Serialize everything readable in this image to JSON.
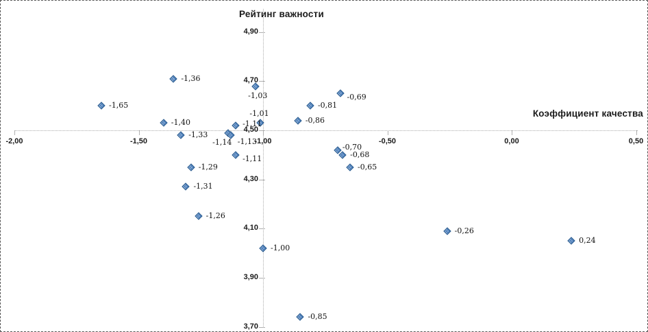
{
  "colors": {
    "marker_fill": "#4a7dba",
    "marker_border": "#2d5d8e",
    "axis_line": "#ababab",
    "text": "#1a1a1a",
    "border": "#555555"
  },
  "chart_data": {
    "type": "scatter",
    "title": "",
    "xlabel": "Коэффициент качества",
    "ylabel": "Рейтинг важности",
    "xlim": [
      -2.0,
      0.5
    ],
    "ylim": [
      3.7,
      4.9
    ],
    "axes_cross_at": {
      "x": -1.0,
      "y": 4.5
    },
    "grid": false,
    "legend": "none",
    "x_ticks": [
      {
        "value": -2.0,
        "label": "-2,00"
      },
      {
        "value": -1.5,
        "label": "-1,50"
      },
      {
        "value": -1.0,
        "label": "-1,00"
      },
      {
        "value": -0.5,
        "label": "-0,50"
      },
      {
        "value": 0.0,
        "label": "0,00"
      },
      {
        "value": 0.5,
        "label": "0,50"
      }
    ],
    "y_ticks": [
      {
        "value": 4.9,
        "label": "4,90"
      },
      {
        "value": 4.7,
        "label": "4,70"
      },
      {
        "value": 4.5,
        "label": "4,50"
      },
      {
        "value": 4.3,
        "label": "4,30"
      },
      {
        "value": 4.1,
        "label": "4,10"
      },
      {
        "value": 3.9,
        "label": "3,90"
      },
      {
        "value": 3.7,
        "label": "3,70"
      }
    ],
    "points": [
      {
        "x": -1.65,
        "y": 4.6,
        "label": "-1,65",
        "label_pos": "right"
      },
      {
        "x": -1.36,
        "y": 4.71,
        "label": "-1,36",
        "label_pos": "right"
      },
      {
        "x": -1.4,
        "y": 4.53,
        "label": "-1,40",
        "label_pos": "right"
      },
      {
        "x": -1.33,
        "y": 4.48,
        "label": "-1,33",
        "label_pos": "right"
      },
      {
        "x": -1.03,
        "y": 4.68,
        "label": "-1,03",
        "label_pos": "below"
      },
      {
        "x": -0.69,
        "y": 4.65,
        "label": "-0,69",
        "label_pos": "right-down"
      },
      {
        "x": -0.81,
        "y": 4.6,
        "label": "-0,81",
        "label_pos": "right"
      },
      {
        "x": -0.86,
        "y": 4.54,
        "label": "-0,86",
        "label_pos": "right"
      },
      {
        "x": -1.01,
        "y": 4.53,
        "label": "-1,01",
        "label_pos": "above"
      },
      {
        "x": -1.11,
        "y": 4.52,
        "label": "-1,11",
        "label_pos": "right-up"
      },
      {
        "x": -1.14,
        "y": 4.49,
        "label": "-1,14",
        "label_pos": "below-left"
      },
      {
        "x": -1.13,
        "y": 4.48,
        "label": "-1,13",
        "label_pos": "below-right"
      },
      {
        "x": -1.11,
        "y": 4.4,
        "label": "-1,11",
        "label_pos": "right-down"
      },
      {
        "x": -0.7,
        "y": 4.42,
        "label": "-0,70",
        "label_pos": "above-right"
      },
      {
        "x": -0.68,
        "y": 4.4,
        "label": "-0,68",
        "label_pos": "right"
      },
      {
        "x": -0.65,
        "y": 4.35,
        "label": "-0,65",
        "label_pos": "right"
      },
      {
        "x": -1.29,
        "y": 4.35,
        "label": "-1,29",
        "label_pos": "right"
      },
      {
        "x": -1.31,
        "y": 4.27,
        "label": "-1,31",
        "label_pos": "right"
      },
      {
        "x": -1.26,
        "y": 4.15,
        "label": "-1,26",
        "label_pos": "right"
      },
      {
        "x": -1.0,
        "y": 4.02,
        "label": "-1,00",
        "label_pos": "right"
      },
      {
        "x": -0.26,
        "y": 4.09,
        "label": "-0,26",
        "label_pos": "right"
      },
      {
        "x": 0.24,
        "y": 4.05,
        "label": "0,24",
        "label_pos": "right"
      },
      {
        "x": -0.85,
        "y": 3.74,
        "label": "-0,85",
        "label_pos": "right"
      }
    ]
  }
}
